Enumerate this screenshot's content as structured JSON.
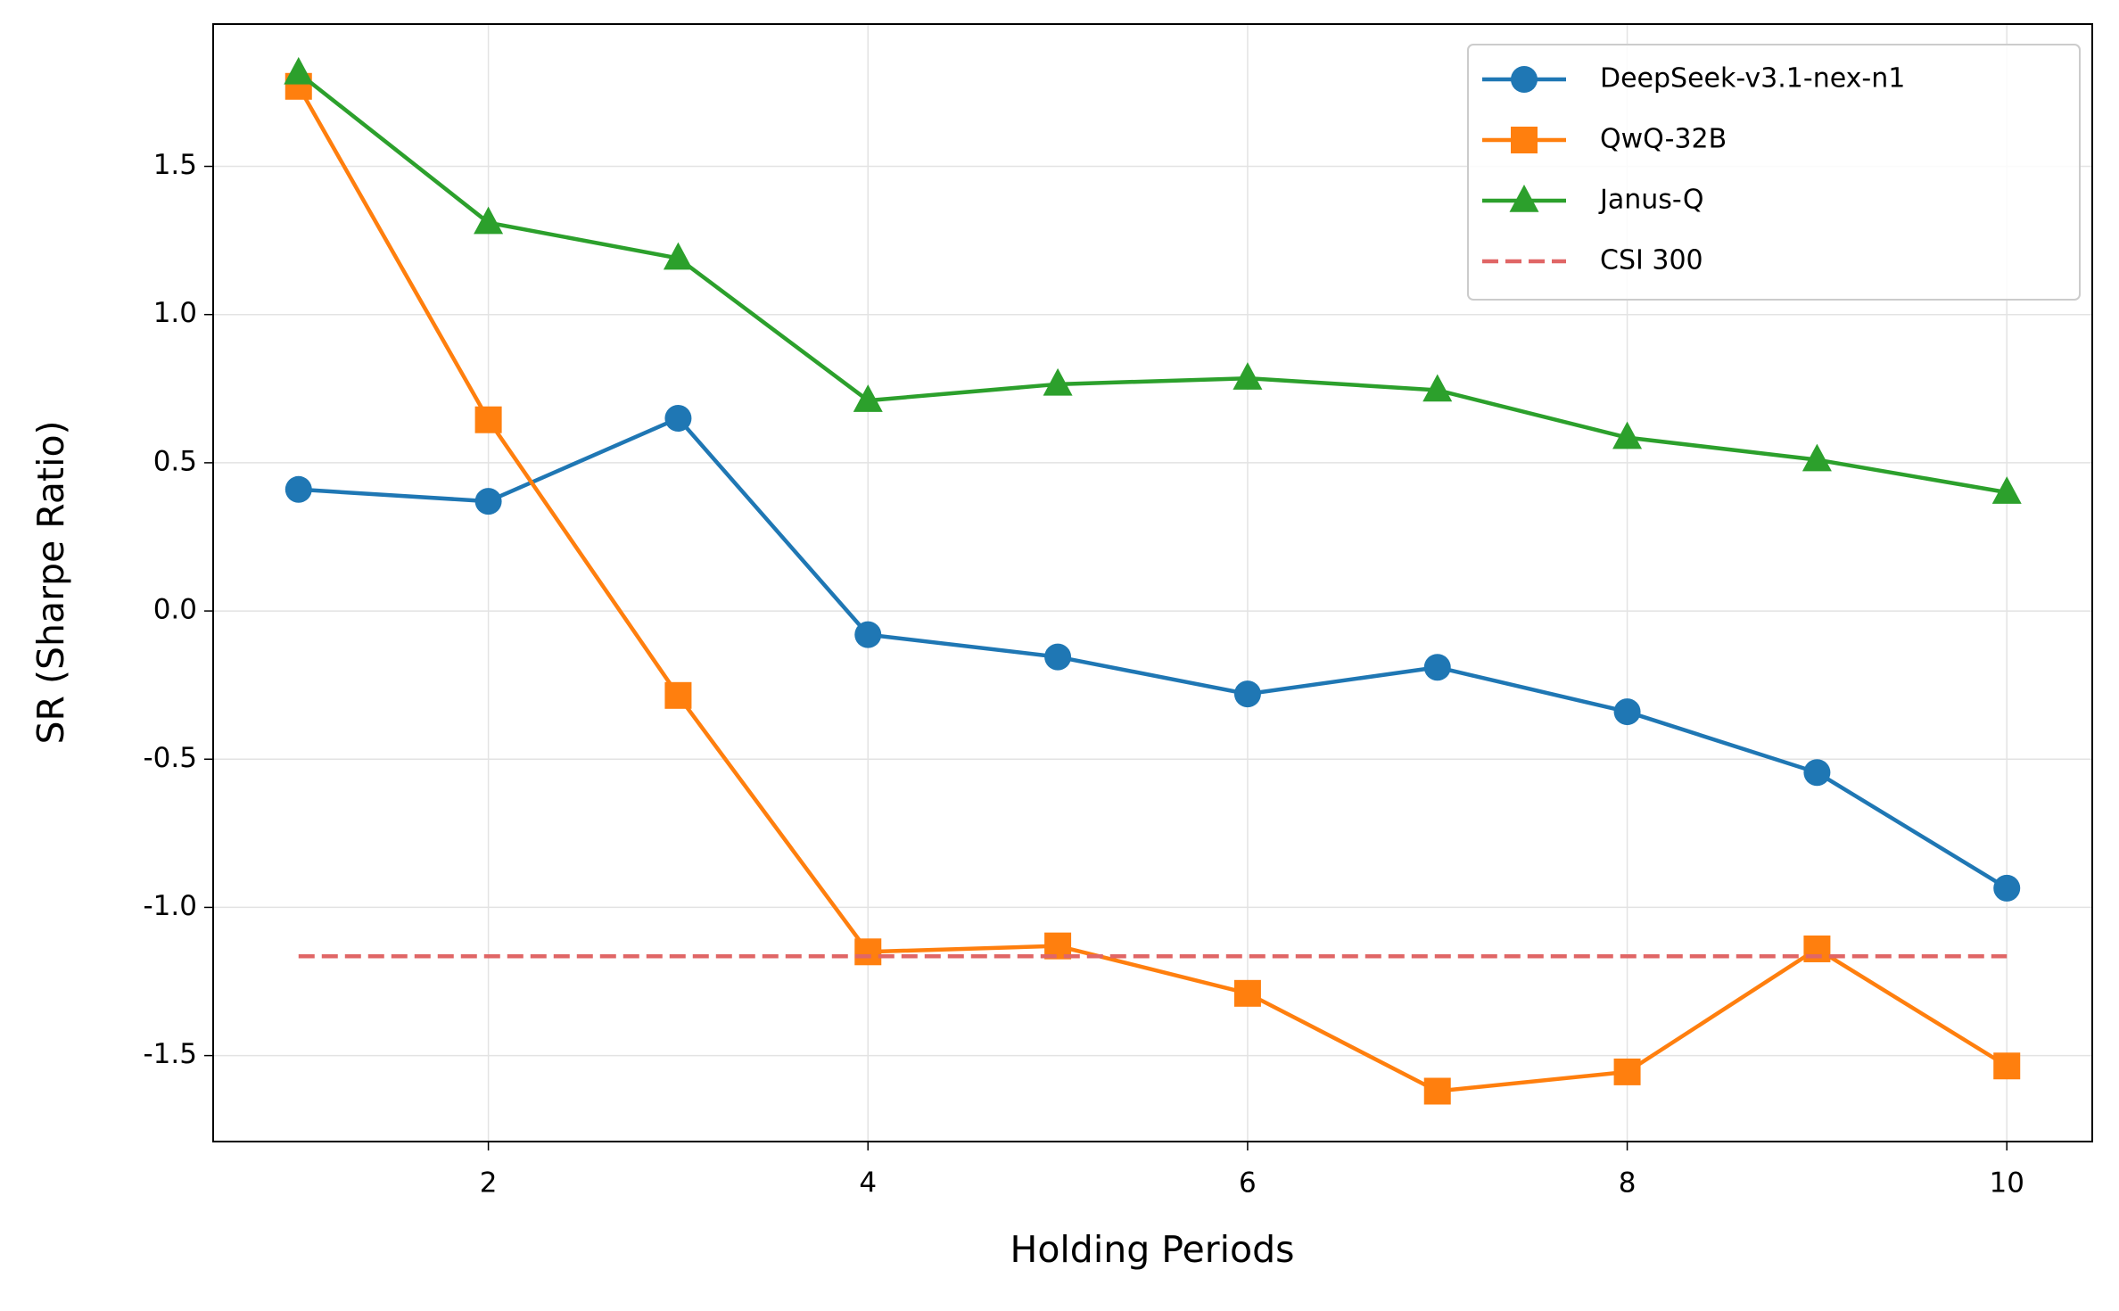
{
  "chart_data": {
    "type": "line",
    "x_label": "Holding Periods",
    "y_label": "SR (Sharpe Ratio)",
    "x": [
      1,
      2,
      3,
      4,
      5,
      6,
      7,
      8,
      9,
      10
    ],
    "xlim": [
      0.55,
      10.45
    ],
    "xticks": [
      2,
      4,
      6,
      8,
      10
    ],
    "ylim": [
      -1.79,
      1.98
    ],
    "yticks": [
      -1.5,
      {
        "value": -1,
        "label": "-1.0"
      },
      -0.5,
      {
        "value": 0,
        "label": "0.0"
      },
      0.5,
      {
        "value": 1,
        "label": "1.0"
      },
      1.5
    ],
    "grid": true,
    "legend": "upper right",
    "series": [
      {
        "name": "DeepSeek-v3.1-nex-n1",
        "color": "#1f77b4",
        "marker": "circle",
        "linestyle": "solid",
        "values": [
          0.41,
          0.37,
          0.65,
          -0.08,
          -0.155,
          -0.28,
          -0.19,
          -0.34,
          -0.545,
          -0.935
        ]
      },
      {
        "name": "QwQ-32B",
        "color": "#ff7f0e",
        "marker": "square",
        "linestyle": "solid",
        "values": [
          1.77,
          0.645,
          -0.285,
          -1.15,
          -1.13,
          -1.29,
          -1.62,
          -1.555,
          -1.14,
          -1.535
        ]
      },
      {
        "name": "Janus-Q",
        "color": "#2ca02c",
        "marker": "triangle",
        "linestyle": "solid",
        "values": [
          1.815,
          1.31,
          1.19,
          0.71,
          0.765,
          0.785,
          0.745,
          0.585,
          0.51,
          0.4
        ]
      },
      {
        "name": "CSI 300",
        "color": "#e06666",
        "marker": null,
        "linestyle": "dashed",
        "values": [
          -1.165,
          -1.165,
          -1.165,
          -1.165,
          -1.165,
          -1.165,
          -1.165,
          -1.165,
          -1.165,
          -1.165
        ]
      }
    ]
  }
}
